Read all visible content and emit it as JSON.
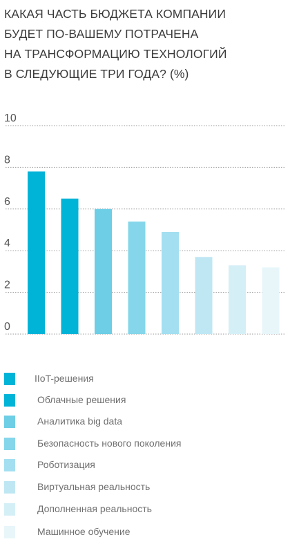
{
  "title_lines": [
    "КАКАЯ ЧАСТЬ БЮДЖЕТА КОМПАНИИ",
    "БУДЕТ ПО-ВАШЕМУ ПОТРАЧЕНА",
    "НА ТРАНСФОРМАЦИЮ ТЕХНОЛОГИЙ",
    "В СЛЕДУЮЩИЕ ТРИ ГОДА? (%)"
  ],
  "chart_data": {
    "type": "bar",
    "title": "КАКАЯ ЧАСТЬ БЮДЖЕТА КОМПАНИИ БУДЕТ ПО-ВАШЕМУ ПОТРАЧЕНА НА ТРАНСФОРМАЦИЮ ТЕХНОЛОГИЙ В СЛЕДУЮЩИЕ ТРИ ГОДА? (%)",
    "xlabel": "",
    "ylabel": "",
    "ylim": [
      0,
      10
    ],
    "yticks": [
      "0",
      "2",
      "4",
      "6",
      "8",
      "10"
    ],
    "grid": true,
    "legend_position": "bottom",
    "categories": [
      "IIoT-решения",
      "Облачные решения",
      "Аналитика big data",
      "Безопасность нового поколения",
      "Роботизация",
      "Виртуальная реальность",
      "Дополненная реальность",
      "Машинное обучение"
    ],
    "values": [
      7.8,
      6.5,
      6.0,
      5.4,
      4.9,
      3.7,
      3.3,
      3.2
    ],
    "colors": [
      "#00b4d8",
      "#00b4d8",
      "#6dcee5",
      "#85d6ea",
      "#a3dff0",
      "#bfe7f3",
      "#d5eff7",
      "#e8f6fa"
    ]
  }
}
